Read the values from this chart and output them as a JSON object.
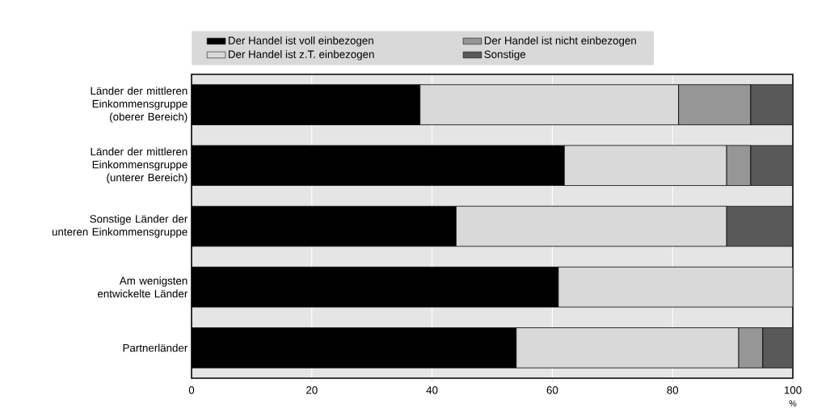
{
  "chart_data": {
    "type": "bar",
    "orientation": "horizontal",
    "stacked": true,
    "categories": [
      "Länder der mittleren Einkommensgruppe (oberer Bereich)",
      "Länder der mittleren Einkommensgruppe (unterer Bereich)",
      "Sonstige Länder der unteren Einkommensgruppe",
      "Am wenigsten entwickelte Länder",
      "Partnerländer"
    ],
    "series": [
      {
        "name": "Der Handel ist voll einbezogen",
        "color": "#000000",
        "values": [
          38,
          62,
          44,
          61,
          54
        ]
      },
      {
        "name": "Der Handel ist z.T. einbezogen",
        "color": "#d9d9d9",
        "values": [
          43,
          27,
          45,
          39,
          37
        ]
      },
      {
        "name": "Der Handel ist nicht einbezogen",
        "color": "#969696",
        "values": [
          12,
          4,
          null,
          null,
          4
        ]
      },
      {
        "name": "Sonstige",
        "color": "#595959",
        "values": [
          7,
          7,
          11,
          null,
          5
        ]
      }
    ],
    "xlabel": "%",
    "xlim": [
      0,
      100
    ],
    "xticks": [
      0,
      20,
      40,
      60,
      80,
      100
    ],
    "grid": "x",
    "legend": "top"
  }
}
